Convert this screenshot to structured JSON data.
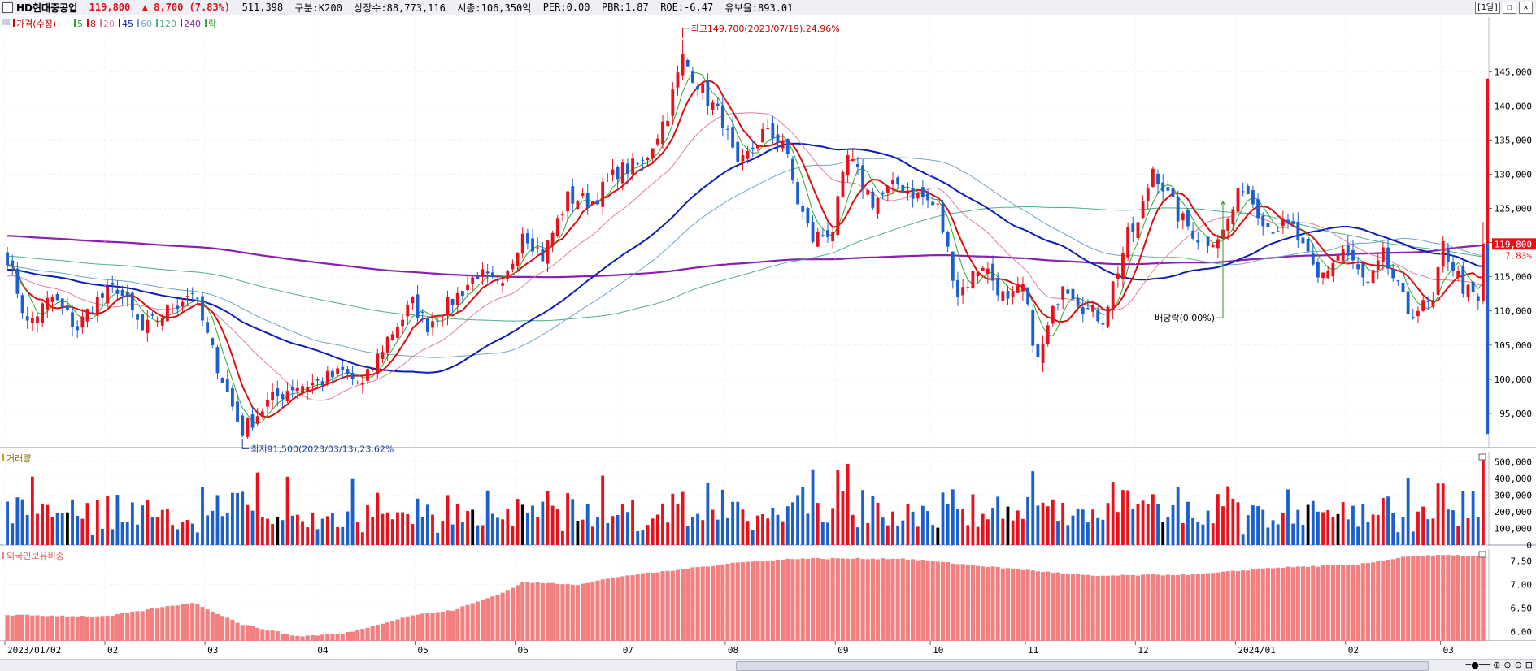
{
  "header": {
    "name": "HD현대중공업",
    "price": "119,800",
    "change_arrow": "▲",
    "change": "8,700",
    "change_pct": "(7.83%)",
    "volume": "511,398",
    "group": "구분:K200",
    "shares": "상장수:88,773,116",
    "mcap": "시총:106,350억",
    "per": "PER:0.00",
    "pbr": "PBR:1.87",
    "roe": "ROE:-6.47",
    "reserve": "유보율:893.01",
    "period_btn": "[1일]",
    "colors": {
      "up": "#e8101b",
      "down": "#1a5fd0"
    }
  },
  "price_legend": [
    {
      "label": "가격(수정)",
      "color": "#d00000"
    },
    {
      "label": "5",
      "color": "#2ea82e"
    },
    {
      "label": "8",
      "color": "#d81010"
    },
    {
      "label": "20",
      "color": "#e07ea0"
    },
    {
      "label": "45",
      "color": "#0b1db8"
    },
    {
      "label": "60",
      "color": "#6fa5c8"
    },
    {
      "label": "120",
      "color": "#4fb08a"
    },
    {
      "label": "240",
      "color": "#8a1fb0"
    },
    {
      "label": "락",
      "color": "#2a9a2a"
    }
  ],
  "volume_legend": "거래량",
  "foreign_legend": "외국인보유비중",
  "annotations": {
    "high": "최고149,700(2023/07/19),24.96%",
    "low": "최저91,500(2023/03/13),23.62%",
    "dividend": "배당락(0.00%)",
    "last_price": "119,800",
    "last_pct": "7.83%"
  },
  "chart_data": [
    {
      "type": "candlestick",
      "title": "가격(수정)",
      "y_ticks": [
        95000,
        100000,
        105000,
        110000,
        115000,
        120000,
        125000,
        130000,
        135000,
        140000,
        145000
      ],
      "y_tick_labels": [
        "95,000",
        "100,000",
        "105,000",
        "110,000",
        "115,000",
        "120,000",
        "125,000",
        "130,000",
        "135,000",
        "140,000",
        "145,000"
      ],
      "ylim": [
        90000,
        153000
      ],
      "x_tick_labels": [
        "2023/01/02",
        "02",
        "03",
        "04",
        "05",
        "06",
        "07",
        "08",
        "09",
        "10",
        "11",
        "12",
        "2024/01",
        "02",
        "03"
      ],
      "close_anchors": [
        [
          "2023/01/02",
          118000
        ],
        [
          "2023/01/06",
          108000
        ],
        [
          "2023/01/13",
          112000
        ],
        [
          "2023/01/20",
          107500
        ],
        [
          "2023/01/27",
          111000
        ],
        [
          "2023/02/03",
          113500
        ],
        [
          "2023/02/10",
          107000
        ],
        [
          "2023/02/17",
          110000
        ],
        [
          "2023/02/24",
          113000
        ],
        [
          "2023/03/03",
          104000
        ],
        [
          "2023/03/10",
          94000
        ],
        [
          "2023/03/13",
          92500
        ],
        [
          "2023/03/20",
          96500
        ],
        [
          "2023/03/27",
          99000
        ],
        [
          "2023/04/03",
          99500
        ],
        [
          "2023/04/10",
          101000
        ],
        [
          "2023/04/14",
          99000
        ],
        [
          "2023/04/21",
          106000
        ],
        [
          "2023/04/28",
          111000
        ],
        [
          "2023/05/05",
          108000
        ],
        [
          "2023/05/12",
          111500
        ],
        [
          "2023/05/19",
          115500
        ],
        [
          "2023/05/26",
          113000
        ],
        [
          "2023/06/02",
          122000
        ],
        [
          "2023/06/09",
          118000
        ],
        [
          "2023/06/16",
          126500
        ],
        [
          "2023/06/23",
          126000
        ],
        [
          "2023/06/30",
          130500
        ],
        [
          "2023/07/07",
          131500
        ],
        [
          "2023/07/14",
          139000
        ],
        [
          "2023/07/19",
          147000
        ],
        [
          "2023/07/26",
          141000
        ],
        [
          "2023/07/31",
          138000
        ],
        [
          "2023/08/03",
          130500
        ],
        [
          "2023/08/10",
          136000
        ],
        [
          "2023/08/17",
          135000
        ],
        [
          "2023/08/22",
          126000
        ],
        [
          "2023/08/25",
          120500
        ],
        [
          "2023/08/31",
          122000
        ],
        [
          "2023/09/05",
          132500
        ],
        [
          "2023/09/12",
          126000
        ],
        [
          "2023/09/19",
          128500
        ],
        [
          "2023/09/26",
          126500
        ],
        [
          "2023/10/05",
          125000
        ],
        [
          "2023/10/12",
          112500
        ],
        [
          "2023/10/19",
          117000
        ],
        [
          "2023/10/26",
          111000
        ],
        [
          "2023/10/31",
          113500
        ],
        [
          "2023/11/03",
          102500
        ],
        [
          "2023/11/10",
          114500
        ],
        [
          "2023/11/17",
          110000
        ],
        [
          "2023/11/22",
          109000
        ],
        [
          "2023/11/29",
          121000
        ],
        [
          "2023/12/01",
          122500
        ],
        [
          "2023/12/06",
          131000
        ],
        [
          "2023/12/13",
          124000
        ],
        [
          "2023/12/20",
          120000
        ],
        [
          "2023/12/27",
          121500
        ],
        [
          "2024/01/03",
          128500
        ],
        [
          "2024/01/10",
          122500
        ],
        [
          "2024/01/17",
          122000
        ],
        [
          "2024/01/24",
          114500
        ],
        [
          "2024/01/31",
          119000
        ],
        [
          "2024/02/07",
          113500
        ],
        [
          "2024/02/14",
          118000
        ],
        [
          "2024/02/21",
          110000
        ],
        [
          "2024/02/28",
          111000
        ],
        [
          "2024/03/04",
          119500
        ],
        [
          "2024/03/08",
          113500
        ],
        [
          "2024/03/13",
          111100
        ],
        [
          "2024/03/14",
          119800
        ]
      ],
      "high": 149700,
      "high_date": "2023/07/19",
      "low": 91500,
      "low_date": "2023/03/13",
      "ma_periods": [
        5,
        8,
        20,
        45,
        60,
        120,
        240
      ]
    },
    {
      "type": "bar",
      "title": "거래량",
      "y_ticks": [
        0,
        100000,
        200000,
        300000,
        400000,
        500000
      ],
      "y_tick_labels": [
        "0",
        "100,000",
        "200,000",
        "300,000",
        "400,000",
        "500,000"
      ],
      "ylim": [
        0,
        560000
      ],
      "last_value": 511398
    },
    {
      "type": "bar",
      "title": "외국인보유비중",
      "y_ticks": [
        6.0,
        6.5,
        7.0,
        7.5
      ],
      "y_tick_labels": [
        "6.00",
        "6.50",
        "7.00",
        "7.50"
      ],
      "ylim": [
        5.8,
        7.75
      ],
      "anchors": [
        [
          "2023/01/02",
          6.35
        ],
        [
          "2023/02/01",
          6.32
        ],
        [
          "2023/02/24",
          6.62
        ],
        [
          "2023/03/13",
          6.15
        ],
        [
          "2023/03/28",
          5.9
        ],
        [
          "2023/04/10",
          5.95
        ],
        [
          "2023/04/28",
          6.35
        ],
        [
          "2023/05/12",
          6.45
        ],
        [
          "2023/05/26",
          6.82
        ],
        [
          "2023/06/02",
          7.05
        ],
        [
          "2023/06/20",
          7.0
        ],
        [
          "2023/07/03",
          7.18
        ],
        [
          "2023/07/19",
          7.32
        ],
        [
          "2023/08/01",
          7.45
        ],
        [
          "2023/08/22",
          7.55
        ],
        [
          "2023/09/20",
          7.55
        ],
        [
          "2023/10/20",
          7.38
        ],
        [
          "2023/11/20",
          7.18
        ],
        [
          "2023/12/20",
          7.22
        ],
        [
          "2024/01/10",
          7.35
        ],
        [
          "2024/02/05",
          7.42
        ],
        [
          "2024/02/21",
          7.6
        ],
        [
          "2024/03/04",
          7.62
        ],
        [
          "2024/03/14",
          7.6
        ]
      ]
    }
  ]
}
